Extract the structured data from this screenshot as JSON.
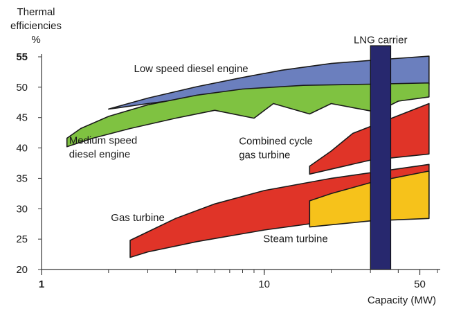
{
  "chart_data": {
    "type": "area",
    "title": "",
    "ylabel_lines": [
      "Thermal",
      "efficiencies",
      "%"
    ],
    "xlabel": "Capacity (MW)",
    "xscale": "log",
    "xlim": [
      1,
      60
    ],
    "ylim": [
      20,
      55
    ],
    "xticks": [
      {
        "value": 1,
        "label": "1"
      },
      {
        "value": 10,
        "label": "10"
      },
      {
        "value": 50,
        "label": "50"
      }
    ],
    "yticks": [
      {
        "value": 20,
        "label": "20"
      },
      {
        "value": 25,
        "label": "25"
      },
      {
        "value": 30,
        "label": "30"
      },
      {
        "value": 35,
        "label": "35"
      },
      {
        "value": 40,
        "label": "40"
      },
      {
        "value": 45,
        "label": "45"
      },
      {
        "value": 50,
        "label": "50"
      },
      {
        "value": 55,
        "label": "55"
      }
    ],
    "bands": [
      {
        "name": "Low speed diesel engine",
        "color": "#6b7fbe",
        "label_lines": [
          "Low speed diesel engine"
        ],
        "label_at": {
          "x": 2.6,
          "y": 52.5
        },
        "polygon": [
          [
            2.0,
            46.4
          ],
          [
            3.0,
            48.2
          ],
          [
            5.0,
            50.1
          ],
          [
            8.0,
            51.6
          ],
          [
            12.0,
            52.8
          ],
          [
            20.0,
            53.9
          ],
          [
            35.0,
            54.6
          ],
          [
            55.0,
            55.1
          ],
          [
            55.0,
            50.4
          ],
          [
            35.0,
            50.2
          ],
          [
            20.0,
            49.8
          ],
          [
            10.0,
            49.2
          ],
          [
            6.0,
            48.6
          ],
          [
            4.0,
            47.9
          ],
          [
            3.0,
            47.3
          ],
          [
            2.2,
            46.6
          ],
          [
            2.0,
            46.4
          ]
        ]
      },
      {
        "name": "Medium speed diesel engine",
        "color": "#7fc241",
        "label_lines": [
          "Medium speed",
          "diesel engine"
        ],
        "label_at": {
          "x": 1.33,
          "y": 40.7
        },
        "polygon": [
          [
            1.3,
            40.2
          ],
          [
            1.3,
            41.6
          ],
          [
            1.5,
            43.2
          ],
          [
            2.0,
            45.2
          ],
          [
            3.0,
            47.1
          ],
          [
            5.0,
            48.7
          ],
          [
            8.0,
            49.7
          ],
          [
            15.0,
            50.3
          ],
          [
            30.0,
            50.5
          ],
          [
            55.0,
            50.7
          ],
          [
            55.0,
            48.4
          ],
          [
            40.0,
            47.7
          ],
          [
            32.0,
            45.9
          ],
          [
            20.0,
            47.3
          ],
          [
            16.0,
            45.6
          ],
          [
            11.0,
            47.3
          ],
          [
            9.0,
            44.9
          ],
          [
            6.0,
            46.2
          ],
          [
            4.0,
            44.9
          ],
          [
            2.5,
            43.2
          ],
          [
            1.7,
            41.6
          ],
          [
            1.3,
            40.2
          ]
        ]
      },
      {
        "name": "Combined cycle gas turbine",
        "color": "#e03428",
        "label_lines": [
          "Combined cycle",
          "gas turbine"
        ],
        "label_at": {
          "x": 7.7,
          "y": 40.6
        },
        "polygon": [
          [
            16.0,
            35.7
          ],
          [
            16.0,
            37.0
          ],
          [
            20.0,
            39.5
          ],
          [
            25.0,
            42.4
          ],
          [
            55.0,
            47.3
          ],
          [
            55.0,
            39.0
          ],
          [
            30.0,
            38.0
          ],
          [
            16.0,
            35.7
          ]
        ]
      },
      {
        "name": "Gas turbine",
        "color": "#e03428",
        "label_lines": [
          "Gas turbine"
        ],
        "label_at": {
          "x": 2.05,
          "y": 28.0
        },
        "polygon": [
          [
            2.5,
            22.0
          ],
          [
            2.5,
            24.8
          ],
          [
            3.0,
            26.2
          ],
          [
            4.0,
            28.4
          ],
          [
            6.0,
            30.8
          ],
          [
            10.0,
            33.0
          ],
          [
            20.0,
            35.0
          ],
          [
            55.0,
            37.3
          ],
          [
            55.0,
            29.1
          ],
          [
            40.0,
            28.7
          ],
          [
            20.0,
            28.0
          ],
          [
            10.0,
            26.5
          ],
          [
            5.0,
            24.6
          ],
          [
            3.0,
            22.9
          ],
          [
            2.5,
            22.0
          ]
        ]
      },
      {
        "name": "Steam turbine",
        "color": "#f6c21b",
        "label_lines": [
          "Steam turbine"
        ],
        "label_at": {
          "x": 9.9,
          "y": 24.5
        },
        "polygon": [
          [
            16.0,
            27.0
          ],
          [
            16.0,
            31.3
          ],
          [
            20.0,
            32.5
          ],
          [
            30.0,
            34.3
          ],
          [
            55.0,
            36.2
          ],
          [
            55.0,
            28.4
          ],
          [
            30.0,
            28.0
          ],
          [
            16.0,
            27.0
          ]
        ]
      }
    ],
    "highlight_bar": {
      "name": "LNG carrier",
      "color": "#27286e",
      "x_range": [
        30,
        37
      ],
      "label_lines": [
        "LNG carrier"
      ],
      "label_at": {
        "x": 33.3,
        "y": 57.2
      }
    }
  }
}
